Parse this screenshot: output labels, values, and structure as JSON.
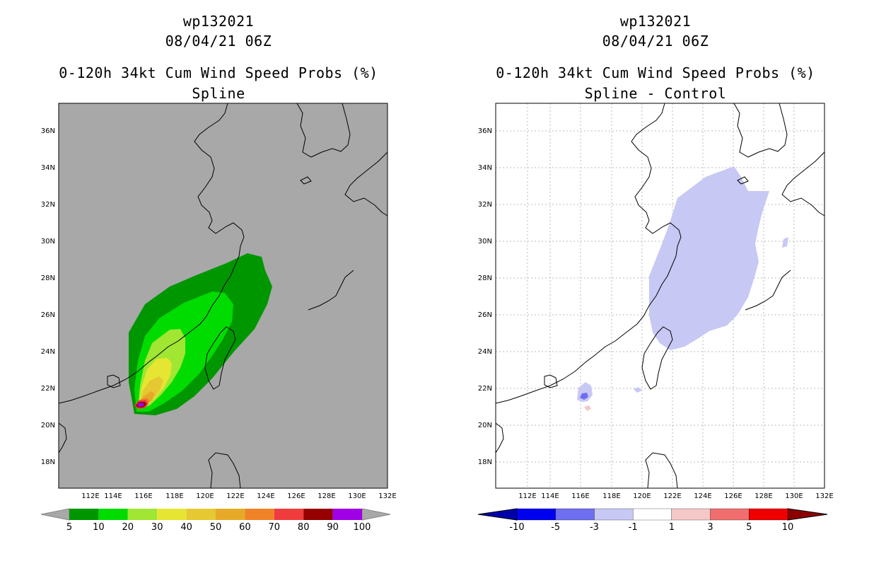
{
  "left": {
    "title_lines": [
      "wp132021",
      "08/04/21 06Z",
      "0-120h 34kt Cum Wind Speed Probs (%)",
      "Spline"
    ],
    "background_color": "#a8a8a8",
    "lat_labels": [
      "18N",
      "20N",
      "22N",
      "24N",
      "26N",
      "28N",
      "30N",
      "32N",
      "34N",
      "36N"
    ],
    "lon_labels": [
      "112E",
      "114E",
      "116E",
      "118E",
      "120E",
      "122E",
      "124E",
      "126E",
      "128E",
      "130E",
      "132E"
    ],
    "colorbar": {
      "colors": [
        "#009600",
        "#00dc00",
        "#a0e632",
        "#e6e632",
        "#e6c832",
        "#e6aa28",
        "#f08228",
        "#f03c3c",
        "#960000",
        "#a000e6"
      ],
      "labels": [
        "5",
        "10",
        "20",
        "30",
        "40",
        "50",
        "60",
        "70",
        "80",
        "90",
        "100"
      ],
      "end_arrow_color": "#a8a8a8"
    }
  },
  "right": {
    "title_lines": [
      "wp132021",
      "08/04/21 06Z",
      "0-120h 34kt Cum Wind Speed Probs (%)",
      "Spline - Control"
    ],
    "background_color": "#ffffff",
    "lat_labels": [
      "18N",
      "20N",
      "22N",
      "24N",
      "26N",
      "28N",
      "30N",
      "32N",
      "34N",
      "36N"
    ],
    "lon_labels": [
      "112E",
      "114E",
      "116E",
      "118E",
      "120E",
      "122E",
      "124E",
      "126E",
      "128E",
      "130E",
      "132E"
    ],
    "colorbar": {
      "colors": [
        "#0000aa",
        "#0000f0",
        "#6e6ef0",
        "#c8c8f5",
        "#ffffff",
        "#f5c8c8",
        "#f06e6e",
        "#f00000",
        "#8c0000"
      ],
      "labels": [
        "-10",
        "-5",
        "-3",
        "-1",
        "1",
        "3",
        "5",
        "10"
      ]
    }
  }
}
